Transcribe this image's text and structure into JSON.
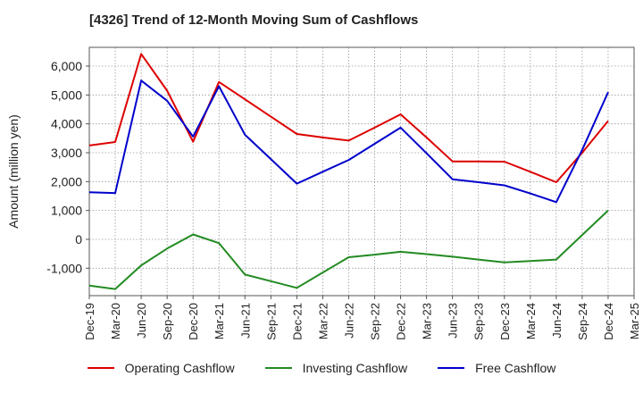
{
  "chart_data": {
    "type": "line",
    "title": "[4326]  Trend of 12-Month Moving Sum of Cashflows",
    "xlabel": "",
    "ylabel": "Amount (million yen)",
    "ylim": [
      -1950,
      6650
    ],
    "yticks": [
      -1000,
      0,
      1000,
      2000,
      3000,
      4000,
      5000,
      6000
    ],
    "ytick_labels": [
      "-1,000",
      "0",
      "1,000",
      "2,000",
      "3,000",
      "4,000",
      "5,000",
      "6,000"
    ],
    "x": [
      "Dec-19",
      "Mar-20",
      "Jun-20",
      "Sep-20",
      "Dec-20",
      "Mar-21",
      "Jun-21",
      "Sep-21",
      "Dec-21",
      "Mar-22",
      "Jun-22",
      "Sep-22",
      "Dec-22",
      "Mar-23",
      "Jun-23",
      "Sep-23",
      "Dec-23",
      "Mar-24",
      "Jun-24",
      "Sep-24",
      "Dec-24",
      "Mar-25"
    ],
    "grid": true,
    "legend_position": "bottom",
    "series": [
      {
        "name": "Operating Cashflow",
        "color": "#dd0000",
        "values": [
          3250,
          3370,
          6420,
          5150,
          3380,
          5450,
          4850,
          4250,
          3650,
          3530,
          3420,
          3870,
          4330,
          3530,
          2700,
          2700,
          2690,
          2340,
          1980,
          3000,
          4100,
          null
        ]
      },
      {
        "name": "Investing Cashflow",
        "color": "#228b22",
        "values": [
          -1600,
          -1720,
          -900,
          -320,
          170,
          -130,
          -1220,
          -1450,
          -1680,
          -1150,
          -620,
          -530,
          -430,
          -510,
          -600,
          -700,
          -800,
          -750,
          -700,
          150,
          1000,
          null
        ]
      },
      {
        "name": "Free Cashflow",
        "color": "#0000cc",
        "values": [
          1630,
          1600,
          5500,
          4800,
          3560,
          5300,
          3620,
          2780,
          1930,
          2340,
          2750,
          3310,
          3870,
          2980,
          2080,
          1980,
          1870,
          1590,
          1290,
          3100,
          5100,
          null
        ]
      }
    ]
  }
}
